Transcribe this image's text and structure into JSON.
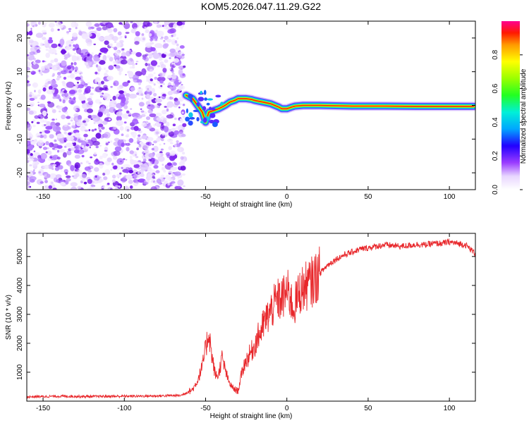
{
  "title": "KOM5.2026.047.11.29.G22",
  "chart_data": [
    {
      "type": "heatmap",
      "name": "spectrogram",
      "xlabel": "Height of straight line (km)",
      "ylabel": "Frequency (Hz)",
      "xlim": [
        -160,
        116
      ],
      "ylim": [
        -25,
        25
      ],
      "xticks": [
        -150,
        -100,
        -50,
        0,
        50,
        100
      ],
      "yticks": [
        -20,
        -10,
        0,
        10,
        20
      ],
      "noise_region": {
        "x_range": [
          -160,
          -63
        ],
        "freq_range": [
          -25,
          25
        ]
      },
      "signal_track": {
        "x": [
          -62,
          -58,
          -55,
          -52,
          -50,
          -48,
          -45,
          -42,
          -40,
          -38,
          -35,
          -32,
          -30,
          -28,
          -25,
          -22,
          -20,
          -15,
          -10,
          -5,
          -3,
          0,
          3,
          5,
          10,
          20,
          40,
          60,
          80,
          100,
          115
        ],
        "freq": [
          3,
          2,
          0,
          -2,
          -5,
          -2,
          -1.5,
          -1,
          -0.5,
          0,
          1,
          1.5,
          2,
          2,
          2,
          1.8,
          1.5,
          1,
          0.5,
          -0.5,
          -1,
          -1,
          -0.5,
          -0.2,
          0,
          0,
          -0.2,
          -0.2,
          -0.3,
          -0.3,
          -0.3
        ]
      },
      "colorbar": {
        "label": "Normalized spectral amplitude",
        "range": [
          0,
          1
        ],
        "ticks": [
          "0.0",
          "0.2",
          "0.4",
          "0.6",
          "0.8"
        ]
      }
    },
    {
      "type": "line",
      "name": "snr",
      "xlabel": "Height of straight line (km)",
      "ylabel": "SNR (10 * v/v)",
      "xlim": [
        -160,
        116
      ],
      "ylim": [
        0,
        5800
      ],
      "xticks": [
        -150,
        -100,
        -50,
        0,
        50,
        100
      ],
      "yticks": [
        1000,
        2000,
        3000,
        4000,
        5000
      ],
      "color": "#e8262a",
      "series": [
        {
          "name": "SNR",
          "x": [
            -160,
            -140,
            -120,
            -100,
            -80,
            -65,
            -58,
            -55,
            -52,
            -50,
            -48,
            -46,
            -44,
            -42,
            -40,
            -38,
            -36,
            -34,
            -32,
            -30,
            -28,
            -26,
            -24,
            -22,
            -20,
            -18,
            -16,
            -14,
            -12,
            -10,
            -8,
            -6,
            -4,
            -2,
            0,
            2,
            4,
            6,
            8,
            10,
            15,
            20,
            25,
            30,
            35,
            40,
            45,
            50,
            55,
            60,
            65,
            70,
            75,
            80,
            85,
            90,
            95,
            100,
            105,
            110,
            116
          ],
          "y": [
            150,
            170,
            160,
            170,
            180,
            200,
            400,
            700,
            1200,
            1800,
            2400,
            1500,
            900,
            900,
            1500,
            1100,
            700,
            500,
            400,
            350,
            900,
            1300,
            1500,
            1700,
            1900,
            2200,
            2400,
            2700,
            2900,
            3100,
            3300,
            3500,
            3500,
            3600,
            3800,
            3600,
            3200,
            3500,
            3800,
            3900,
            4100,
            4400,
            4700,
            4900,
            5050,
            5150,
            5250,
            5300,
            5350,
            5400,
            5380,
            5350,
            5380,
            5420,
            5400,
            5450,
            5450,
            5500,
            5450,
            5400,
            5100
          ]
        }
      ]
    }
  ]
}
